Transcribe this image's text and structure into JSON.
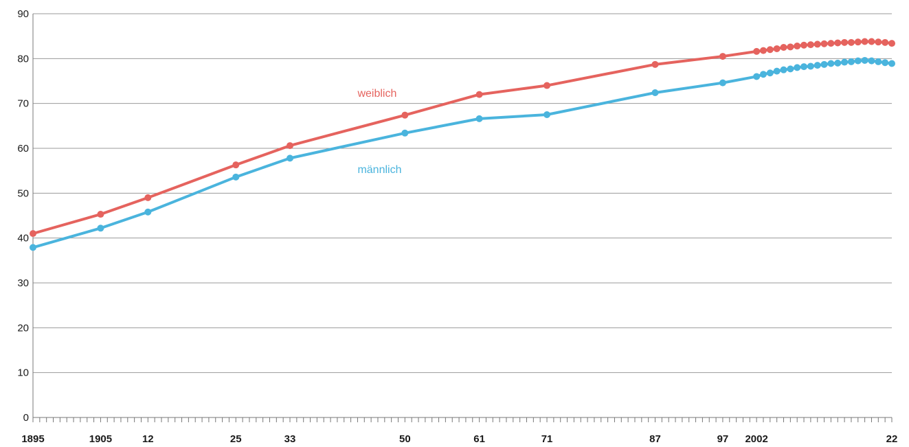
{
  "chart_data": {
    "type": "line",
    "title": "",
    "xlabel": "",
    "ylabel": "",
    "ylim": [
      0,
      90
    ],
    "xlim": [
      1895,
      2022
    ],
    "y_ticks": [
      0,
      10,
      20,
      30,
      40,
      50,
      60,
      70,
      80,
      90
    ],
    "x_tick_labels": [
      {
        "year": 1895,
        "label": "1895"
      },
      {
        "year": 1905,
        "label": "1905"
      },
      {
        "year": 1912,
        "label": "12"
      },
      {
        "year": 1925,
        "label": "25"
      },
      {
        "year": 1933,
        "label": "33"
      },
      {
        "year": 1950,
        "label": "50"
      },
      {
        "year": 1961,
        "label": "61"
      },
      {
        "year": 1971,
        "label": "71"
      },
      {
        "year": 1987,
        "label": "87"
      },
      {
        "year": 1997,
        "label": "97"
      },
      {
        "year": 2002,
        "label": "2002"
      },
      {
        "year": 2022,
        "label": "22"
      }
    ],
    "grid": "horizontal",
    "x": [
      1895,
      1905,
      1912,
      1925,
      1933,
      1950,
      1961,
      1971,
      1987,
      1997,
      2002,
      2003,
      2004,
      2005,
      2006,
      2007,
      2008,
      2009,
      2010,
      2011,
      2012,
      2013,
      2014,
      2015,
      2016,
      2017,
      2018,
      2019,
      2020,
      2021,
      2022
    ],
    "series": [
      {
        "name": "weiblich",
        "color": "#e5635e",
        "values": [
          41.0,
          45.3,
          49.0,
          56.3,
          60.6,
          67.4,
          72.0,
          74.0,
          78.7,
          80.5,
          81.6,
          81.8,
          82.0,
          82.2,
          82.5,
          82.6,
          82.8,
          83.0,
          83.1,
          83.2,
          83.3,
          83.4,
          83.5,
          83.6,
          83.6,
          83.7,
          83.8,
          83.8,
          83.7,
          83.6,
          83.4
        ]
      },
      {
        "name": "männlich",
        "color": "#4ab4dd",
        "values": [
          37.9,
          42.2,
          45.8,
          53.6,
          57.8,
          63.4,
          66.6,
          67.5,
          72.4,
          74.6,
          76.0,
          76.5,
          76.8,
          77.2,
          77.5,
          77.7,
          78.0,
          78.2,
          78.3,
          78.5,
          78.7,
          78.9,
          79.0,
          79.2,
          79.3,
          79.5,
          79.6,
          79.5,
          79.3,
          79.1,
          78.9
        ]
      }
    ]
  }
}
